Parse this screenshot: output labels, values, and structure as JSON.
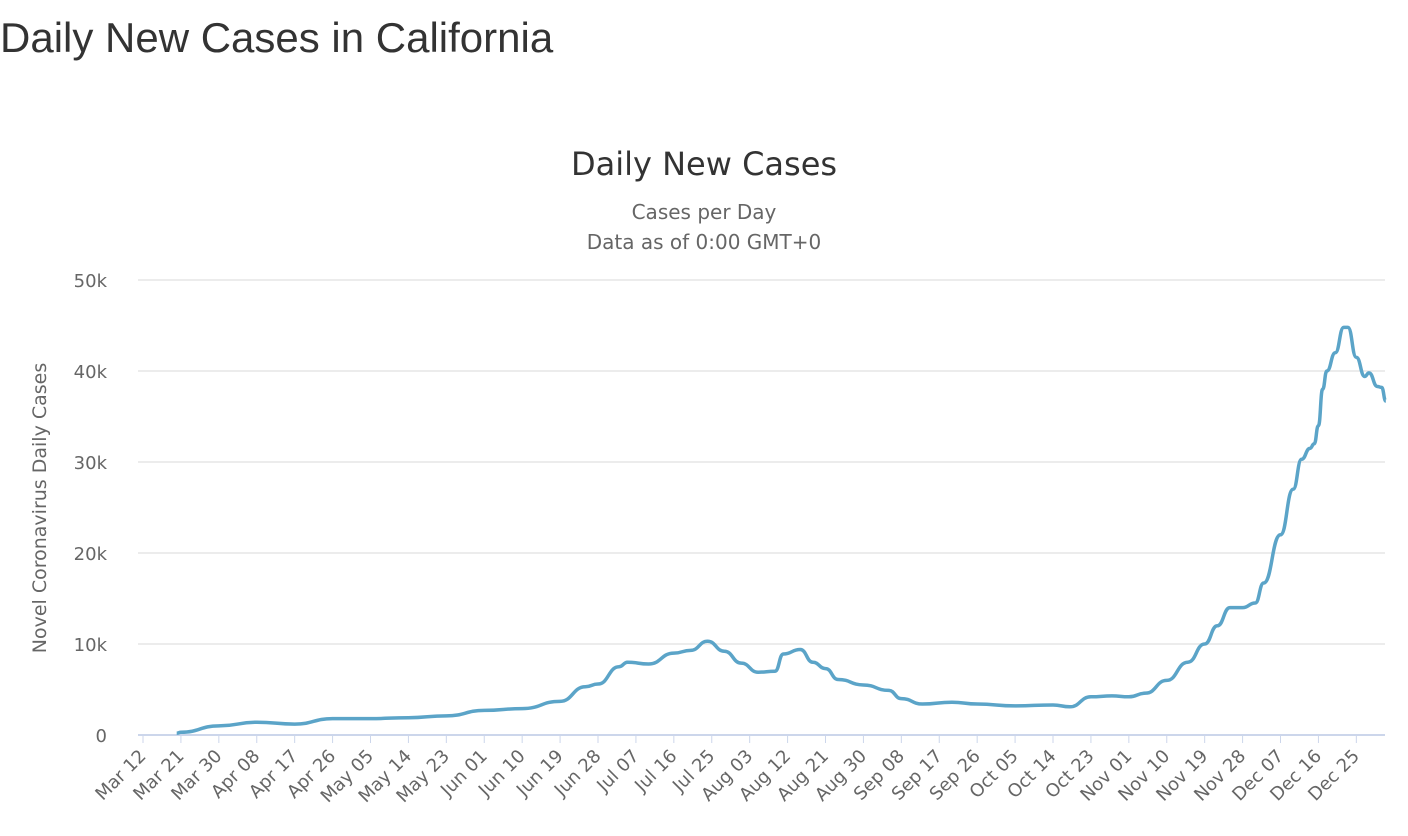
{
  "page_title": "Daily New Cases in California",
  "chart_data": {
    "type": "line",
    "title": "Daily New Cases",
    "subtitle": "Cases per Day",
    "subtitle2": "Data as of 0:00 GMT+0",
    "ylabel": "Novel Coronavirus Daily Cases",
    "xlabel": "",
    "ylim": [
      0,
      50000
    ],
    "yticks": [
      "0",
      "10k",
      "20k",
      "30k",
      "40k",
      "50k"
    ],
    "xticks": [
      "Mar 12",
      "Mar 21",
      "Mar 30",
      "Apr 08",
      "Apr 17",
      "Apr 26",
      "May 05",
      "May 14",
      "May 23",
      "Jun 01",
      "Jun 10",
      "Jun 19",
      "Jun 28",
      "Jul 07",
      "Jul 16",
      "Jul 25",
      "Aug 03",
      "Aug 12",
      "Aug 21",
      "Aug 30",
      "Sep 08",
      "Sep 17",
      "Sep 26",
      "Oct 05",
      "Oct 14",
      "Oct 23",
      "Nov 01",
      "Nov 10",
      "Nov 19",
      "Nov 28",
      "Dec 07",
      "Dec 16",
      "Dec 25"
    ],
    "grid": true,
    "legend": "none",
    "color": "#5ba4c8",
    "x": [
      "2020-03-20",
      "2020-03-21",
      "2020-03-30",
      "2020-04-08",
      "2020-04-17",
      "2020-04-26",
      "2020-05-05",
      "2020-05-14",
      "2020-05-23",
      "2020-06-01",
      "2020-06-10",
      "2020-06-19",
      "2020-06-25",
      "2020-06-28",
      "2020-07-03",
      "2020-07-05",
      "2020-07-10",
      "2020-07-16",
      "2020-07-20",
      "2020-07-24",
      "2020-07-28",
      "2020-08-01",
      "2020-08-05",
      "2020-08-09",
      "2020-08-11",
      "2020-08-15",
      "2020-08-18",
      "2020-08-21",
      "2020-08-24",
      "2020-08-30",
      "2020-09-05",
      "2020-09-08",
      "2020-09-13",
      "2020-09-20",
      "2020-09-26",
      "2020-10-05",
      "2020-10-14",
      "2020-10-18",
      "2020-10-23",
      "2020-10-28",
      "2020-11-01",
      "2020-11-05",
      "2020-11-10",
      "2020-11-15",
      "2020-11-19",
      "2020-11-22",
      "2020-11-25",
      "2020-11-28",
      "2020-12-01",
      "2020-12-03",
      "2020-12-07",
      "2020-12-10",
      "2020-12-12",
      "2020-12-14",
      "2020-12-15",
      "2020-12-16",
      "2020-12-17",
      "2020-12-18",
      "2020-12-20",
      "2020-12-22",
      "2020-12-23",
      "2020-12-25",
      "2020-12-27",
      "2020-12-28",
      "2020-12-30",
      "2020-12-31",
      "2021-01-01"
    ],
    "values": [
      200,
      300,
      1000,
      1400,
      1200,
      1800,
      1800,
      1900,
      2100,
      2700,
      2900,
      3700,
      5300,
      5600,
      7500,
      8000,
      7800,
      9000,
      9300,
      10300,
      9200,
      7900,
      6900,
      7000,
      8900,
      9400,
      8000,
      7300,
      6100,
      5500,
      4900,
      4000,
      3400,
      3600,
      3400,
      3200,
      3300,
      3100,
      4200,
      4300,
      4200,
      4600,
      6000,
      8000,
      10000,
      12000,
      14000,
      14000,
      14500,
      16700,
      22000,
      27000,
      30300,
      31500,
      32000,
      34000,
      38000,
      40000,
      42000,
      44800,
      44800,
      41500,
      39400,
      39800,
      38300,
      38200,
      36700
    ]
  }
}
